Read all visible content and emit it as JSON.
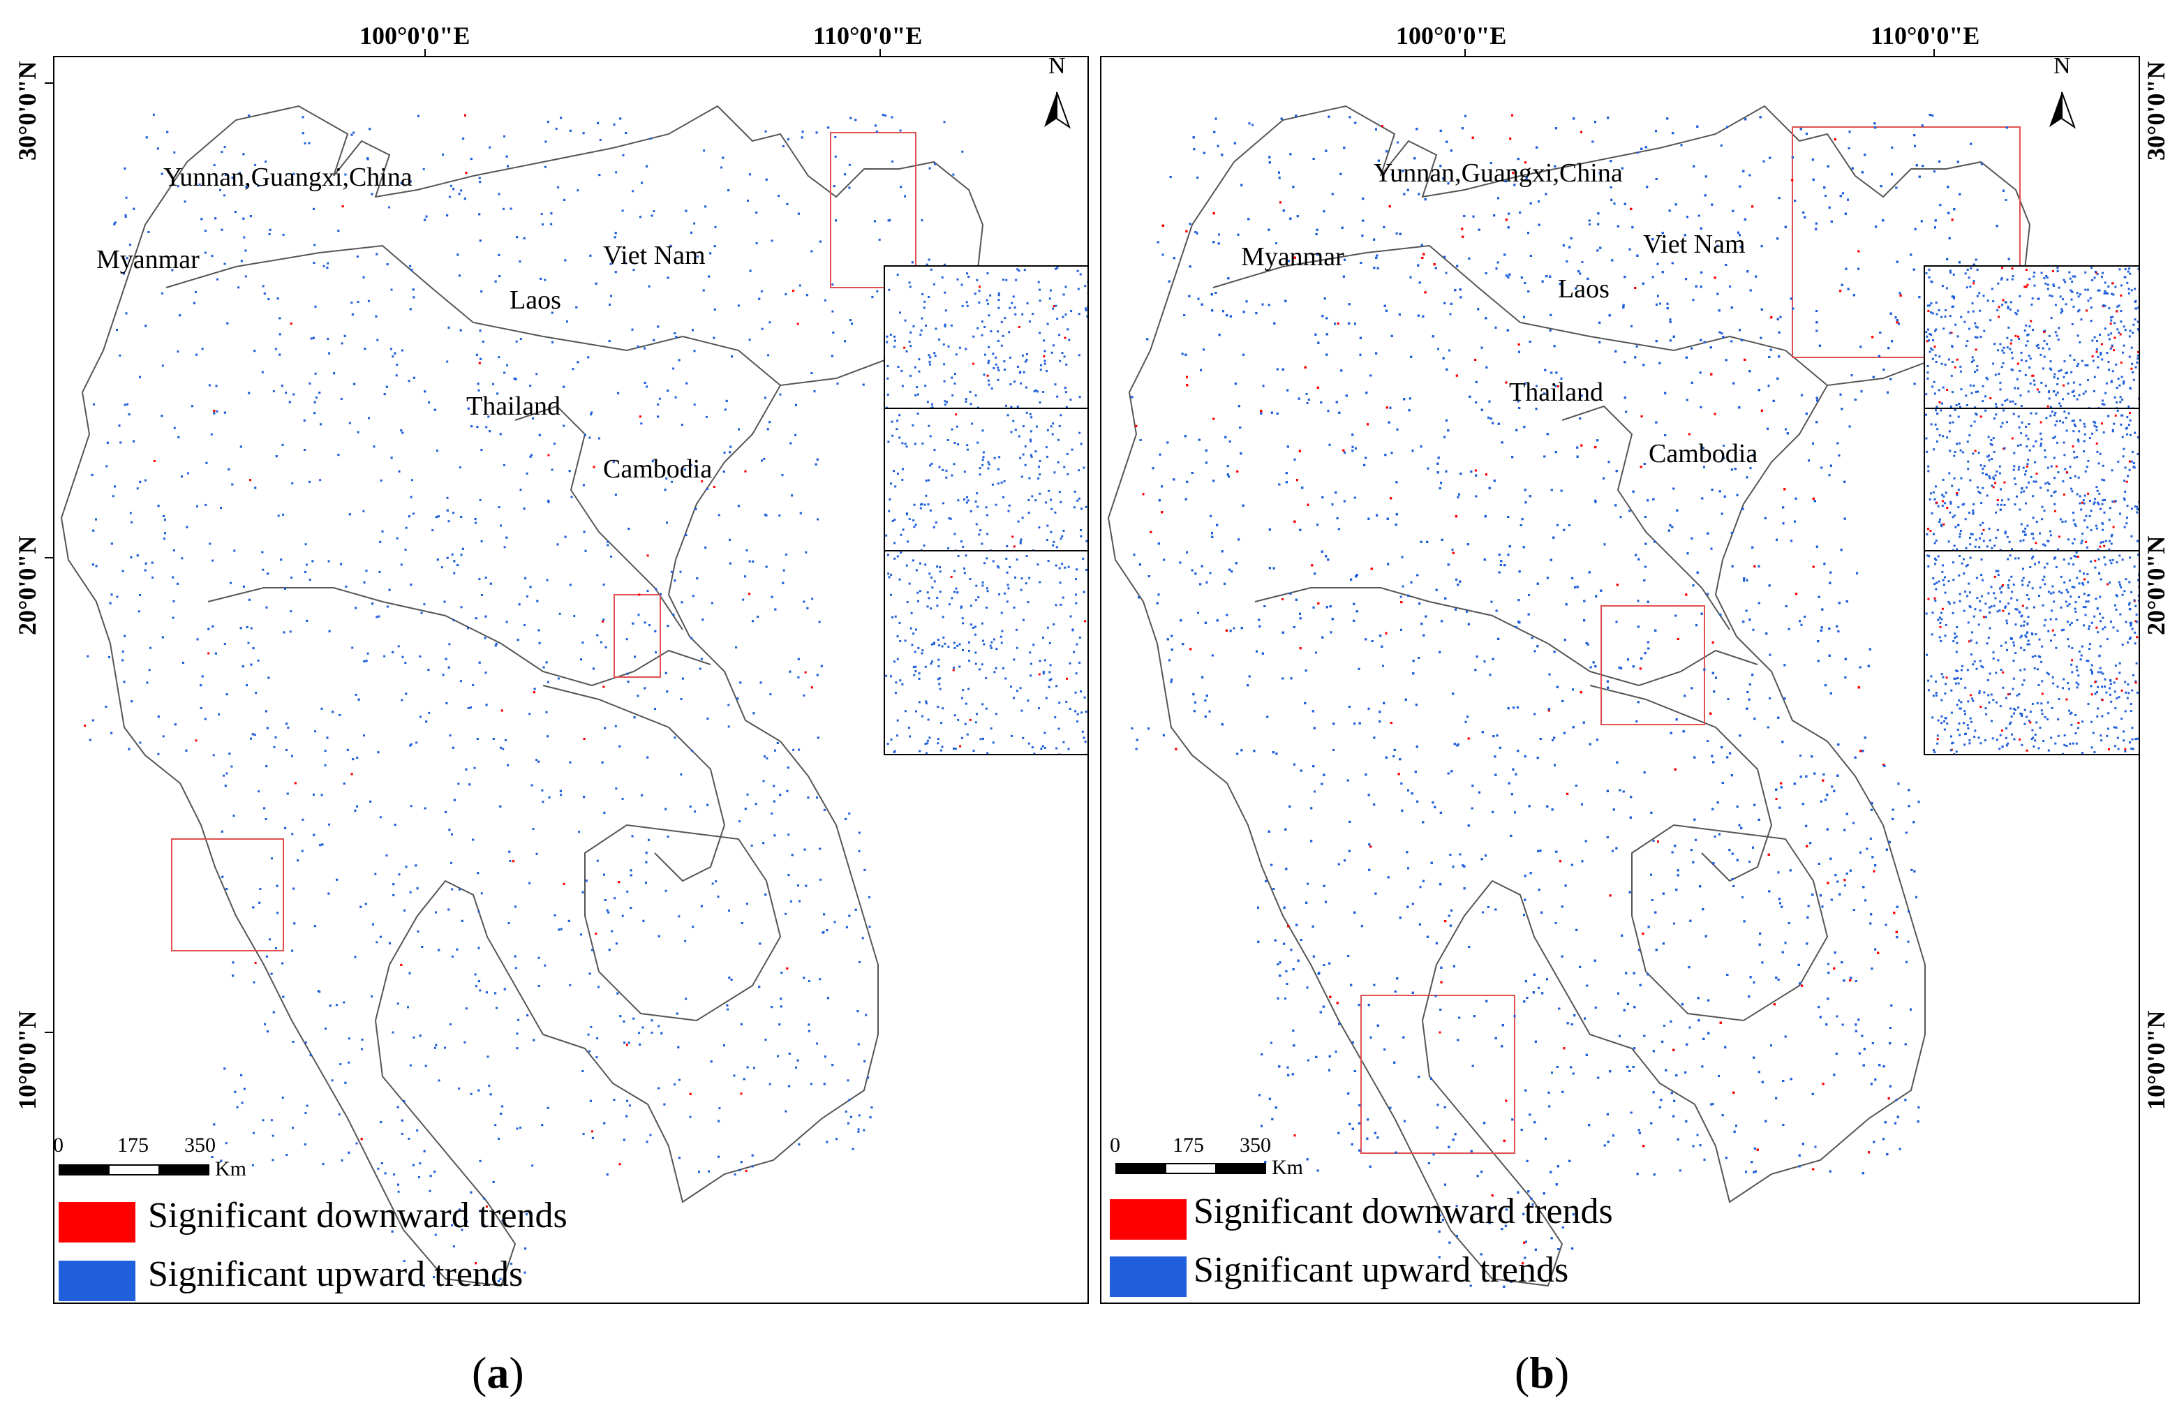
{
  "lon_labels": [
    "100°0'0\"E",
    "110°0'0\"E"
  ],
  "lat_labels": [
    "30°0'0\"N",
    "20°0'0\"N",
    "10°0'0\"N"
  ],
  "north_label": "N",
  "countries": [
    "Yunnan,Guangxi,China",
    "Myanmar",
    "Viet Nam",
    "Laos",
    "Thailand",
    "Cambodia"
  ],
  "scale": {
    "ticks": [
      "0",
      "175",
      "350"
    ],
    "unit": "Km"
  },
  "legend": [
    {
      "label": "Significant downward trends",
      "color": "#ff0000"
    },
    {
      "label": "Significant upward trends",
      "color": "#1f5fdc"
    }
  ],
  "panels": [
    {
      "caption_letter": "a",
      "blue_density": 0.35,
      "red_density": 0.03
    },
    {
      "caption_letter": "b",
      "blue_density": 0.75,
      "red_density": 0.08
    }
  ],
  "colors": {
    "upward": "#1f5fdc",
    "downward": "#ff0000",
    "highlight_box": "#e05050",
    "outline": "#555555"
  }
}
